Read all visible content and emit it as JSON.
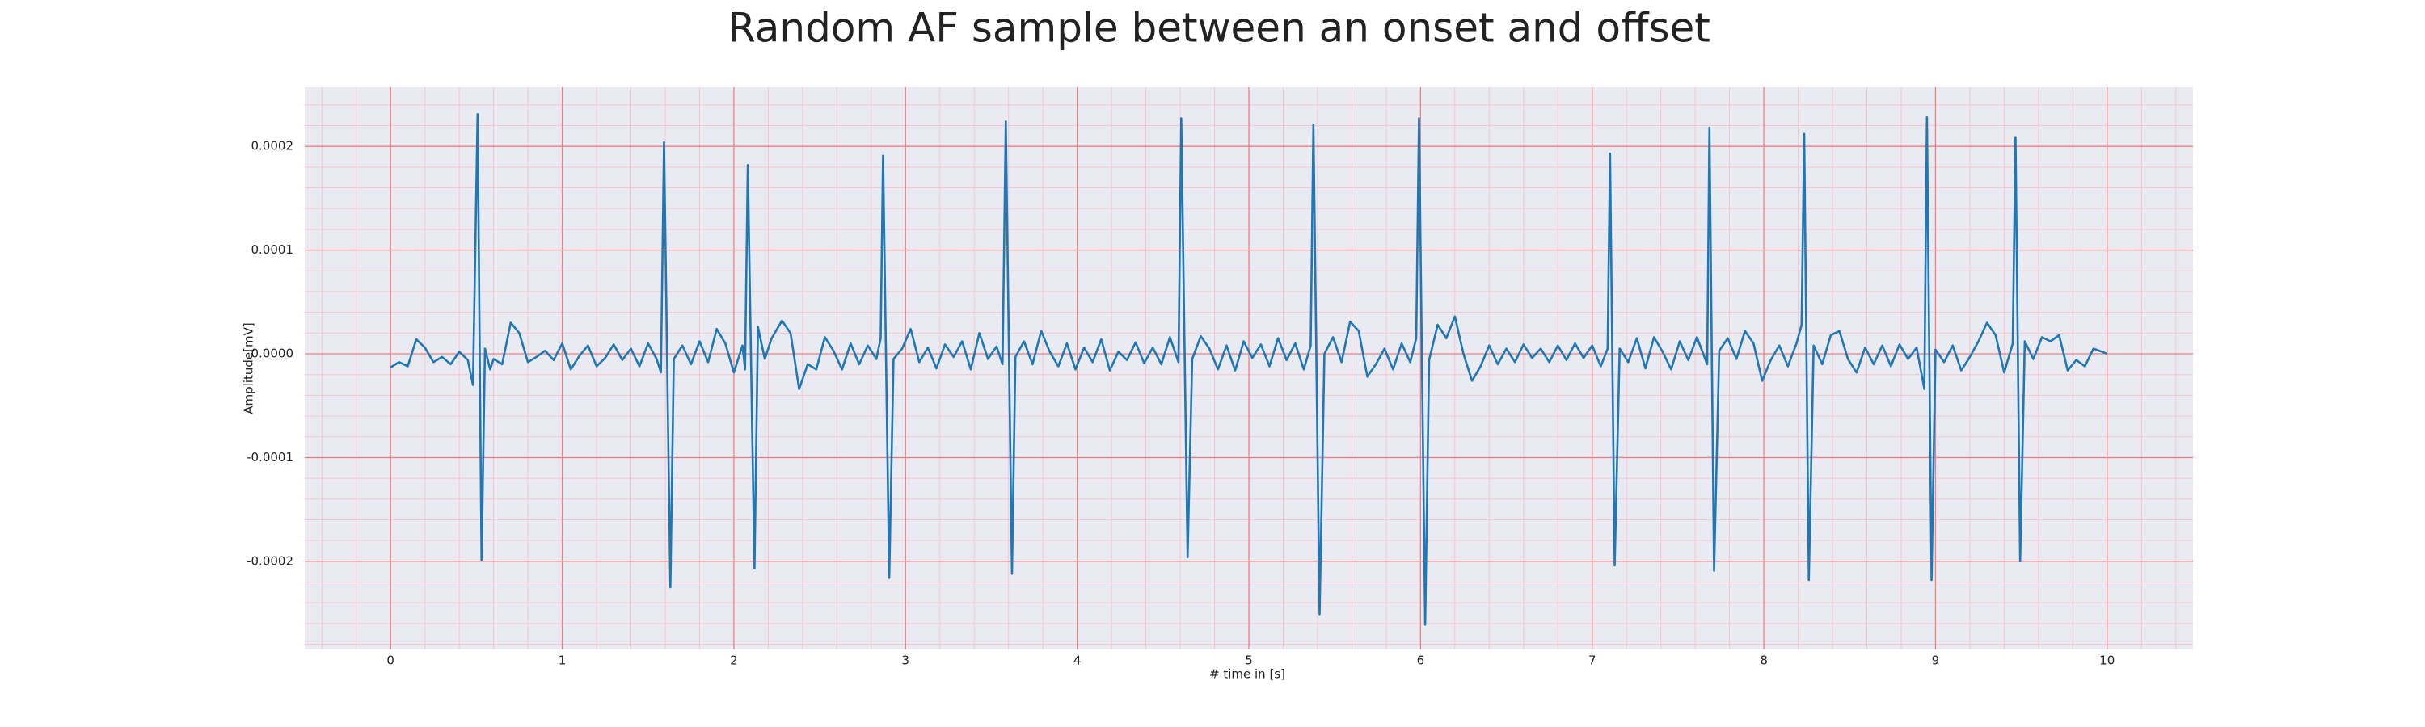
{
  "chart_data": {
    "type": "line",
    "title": "Random AF sample between an onset and offset",
    "xlabel": "# time in [s]",
    "ylabel": "Amplitude[mV]",
    "color": "#1f77b4",
    "background": "#eaeaf2",
    "grid_color": "#f08080",
    "minor_grid_color": "#f6c6cc",
    "grid": true,
    "xlim": [
      -0.5,
      10.5
    ],
    "ylim": [
      -0.000285,
      0.000257
    ],
    "xticks": [
      0,
      1,
      2,
      3,
      4,
      5,
      6,
      7,
      8,
      9,
      10
    ],
    "yticks": [
      -0.0002,
      -0.0001,
      {
        "value": 0,
        "label": "0.0000"
      },
      0.0001,
      0.0002
    ],
    "xminorticks": [
      -0.4,
      -0.2,
      0,
      0.2,
      0.4,
      0.6,
      0.8,
      1,
      1.2,
      1.4,
      1.6,
      1.8,
      2,
      2.2,
      2.4,
      2.6,
      2.8,
      3,
      3.2,
      3.4,
      3.6,
      3.8,
      4,
      4.2,
      4.4,
      4.6,
      4.8,
      5,
      5.2,
      5.4,
      5.6,
      5.8,
      6,
      6.2,
      6.4,
      6.6,
      6.8,
      7,
      7.2,
      7.4,
      7.6,
      7.8,
      8,
      8.2,
      8.4,
      8.6,
      8.8,
      9,
      9.2,
      9.4,
      9.6,
      9.8,
      10,
      10.2,
      10.4
    ],
    "yminorticks": [
      -0.00028,
      -0.00026,
      -0.00024,
      -0.00022,
      -0.0002,
      -0.00018,
      -0.00016,
      -0.00014,
      -0.00012,
      -0.0001,
      -8e-05,
      -6e-05,
      -4e-05,
      -2e-05,
      0,
      2e-05,
      4e-05,
      6e-05,
      8e-05,
      0.0001,
      0.00012,
      0.00014,
      0.00016,
      0.00018,
      0.0002,
      0.00022,
      0.00024
    ],
    "x": [
      0,
      0.05,
      0.1,
      0.15,
      0.2,
      0.25,
      0.3,
      0.35,
      0.4,
      0.45,
      0.48,
      0.507,
      0.53,
      0.55,
      0.58,
      0.6,
      0.65,
      0.7,
      0.75,
      0.8,
      0.85,
      0.9,
      0.95,
      1.0,
      1.05,
      1.1,
      1.15,
      1.2,
      1.25,
      1.3,
      1.35,
      1.4,
      1.45,
      1.5,
      1.55,
      1.575,
      1.593,
      1.63,
      1.65,
      1.7,
      1.75,
      1.8,
      1.85,
      1.9,
      1.95,
      2.0,
      2.05,
      2.065,
      2.081,
      2.12,
      2.14,
      2.18,
      2.22,
      2.28,
      2.33,
      2.38,
      2.43,
      2.48,
      2.53,
      2.58,
      2.63,
      2.68,
      2.73,
      2.78,
      2.83,
      2.855,
      2.869,
      2.905,
      2.93,
      2.98,
      3.03,
      3.08,
      3.13,
      3.18,
      3.23,
      3.28,
      3.33,
      3.38,
      3.43,
      3.48,
      3.53,
      3.565,
      3.584,
      3.62,
      3.64,
      3.69,
      3.74,
      3.79,
      3.84,
      3.89,
      3.94,
      3.99,
      4.04,
      4.09,
      4.14,
      4.19,
      4.24,
      4.29,
      4.34,
      4.39,
      4.44,
      4.49,
      4.54,
      4.59,
      4.606,
      4.643,
      4.67,
      4.72,
      4.77,
      4.82,
      4.87,
      4.92,
      4.97,
      5.02,
      5.07,
      5.12,
      5.17,
      5.22,
      5.27,
      5.32,
      5.36,
      5.376,
      5.412,
      5.44,
      5.49,
      5.54,
      5.59,
      5.64,
      5.69,
      5.74,
      5.79,
      5.84,
      5.89,
      5.94,
      5.975,
      5.991,
      6.027,
      6.05,
      6.1,
      6.15,
      6.2,
      6.25,
      6.3,
      6.35,
      6.4,
      6.45,
      6.5,
      6.55,
      6.6,
      6.65,
      6.7,
      6.75,
      6.8,
      6.85,
      6.9,
      6.95,
      7.0,
      7.05,
      7.09,
      7.104,
      7.131,
      7.16,
      7.21,
      7.26,
      7.31,
      7.36,
      7.41,
      7.46,
      7.51,
      7.56,
      7.61,
      7.67,
      7.683,
      7.71,
      7.74,
      7.79,
      7.84,
      7.89,
      7.94,
      7.99,
      8.04,
      8.09,
      8.14,
      8.19,
      8.22,
      8.235,
      8.262,
      8.29,
      8.34,
      8.39,
      8.44,
      8.49,
      8.54,
      8.59,
      8.64,
      8.69,
      8.74,
      8.79,
      8.84,
      8.89,
      8.935,
      8.95,
      8.977,
      9.0,
      9.05,
      9.1,
      9.15,
      9.2,
      9.25,
      9.3,
      9.35,
      9.4,
      9.45,
      9.466,
      9.493,
      9.52,
      9.57,
      9.62,
      9.67,
      9.72,
      9.77,
      9.82,
      9.87,
      9.92,
      9.97,
      10.0
    ],
    "values": [
      -1.3e-05,
      -8e-06,
      -1.2e-05,
      1.4e-05,
      6e-06,
      -8e-06,
      -3e-06,
      -1e-05,
      2e-06,
      -6e-06,
      -3e-05,
      0.000231,
      -0.000199,
      5e-06,
      -1.5e-05,
      -5e-06,
      -1e-05,
      3e-05,
      2e-05,
      -8e-06,
      -3e-06,
      3e-06,
      -6e-06,
      1e-05,
      -1.5e-05,
      -2e-06,
      8e-06,
      -1.2e-05,
      -4e-06,
      9e-06,
      -6e-06,
      5e-06,
      -1.2e-05,
      1e-05,
      -5e-06,
      -1.8e-05,
      0.000204,
      -0.000225,
      -5e-06,
      8e-06,
      -1e-05,
      1.2e-05,
      -8e-06,
      2.4e-05,
      1e-05,
      -1.8e-05,
      8e-06,
      -1.5e-05,
      0.000182,
      -0.000207,
      2.6e-05,
      -5e-06,
      1.5e-05,
      3.2e-05,
      2e-05,
      -3.4e-05,
      -1e-05,
      -1.5e-05,
      1.6e-05,
      3e-06,
      -1.5e-05,
      1e-05,
      -1e-05,
      8e-06,
      -5e-06,
      1.5e-05,
      0.000191,
      -0.000216,
      -5e-06,
      5e-06,
      2.4e-05,
      -8e-06,
      6e-06,
      -1.4e-05,
      9e-06,
      -3e-06,
      1.2e-05,
      -1.5e-05,
      2e-05,
      -5e-06,
      7e-06,
      -1e-05,
      0.000224,
      -0.000212,
      -3e-06,
      1.2e-05,
      -1e-05,
      2.2e-05,
      2e-06,
      -1.2e-05,
      1e-05,
      -1.5e-05,
      6e-06,
      -8e-06,
      1.4e-05,
      -1.6e-05,
      2e-06,
      -6e-06,
      1.1e-05,
      -9e-06,
      6e-06,
      -1e-05,
      1.6e-05,
      -8e-06,
      0.000227,
      -0.000196,
      -5e-06,
      1.7e-05,
      5e-06,
      -1.5e-05,
      8e-06,
      -1.6e-05,
      1.2e-05,
      -4e-06,
      9e-06,
      -1.2e-05,
      1.5e-05,
      -6e-06,
      1e-05,
      -1.5e-05,
      8e-06,
      0.000221,
      -0.000251,
      0,
      1.6e-05,
      -8e-06,
      3.1e-05,
      2.2e-05,
      -2.2e-05,
      -1e-05,
      5e-06,
      -1.5e-05,
      1e-05,
      -8e-06,
      1.5e-05,
      0.000227,
      -0.000261,
      -6e-06,
      2.8e-05,
      1.5e-05,
      3.6e-05,
      0,
      -2.6e-05,
      -1.2e-05,
      8e-06,
      -1e-05,
      5e-06,
      -8e-06,
      9e-06,
      -4e-06,
      5e-06,
      -8e-06,
      8e-06,
      -6e-06,
      1e-05,
      -4e-06,
      8e-06,
      -1.2e-05,
      5e-06,
      0.000193,
      -0.000204,
      5e-06,
      -8e-06,
      1.5e-05,
      -1.4e-05,
      1.6e-05,
      2e-06,
      -1.5e-05,
      1.2e-05,
      -6e-06,
      1.6e-05,
      -1e-05,
      0.000218,
      -0.000209,
      3e-06,
      1.5e-05,
      -5e-06,
      2.2e-05,
      1e-05,
      -2.6e-05,
      -6e-06,
      8e-06,
      -1.2e-05,
      1e-05,
      2.8e-05,
      0.000212,
      -0.000218,
      8e-06,
      -1e-05,
      1.8e-05,
      2.2e-05,
      -5e-06,
      -1.8e-05,
      6e-06,
      -1e-05,
      8e-06,
      -1.2e-05,
      9e-06,
      -5e-06,
      6e-06,
      -3.4e-05,
      0.000228,
      -0.000218,
      4e-06,
      -8e-06,
      8e-06,
      -1.6e-05,
      -3e-06,
      1.2e-05,
      3e-05,
      1.8e-05,
      -1.8e-05,
      1e-05,
      0.000209,
      -0.0002,
      1.2e-05,
      -5e-06,
      1.6e-05,
      1.2e-05,
      1.8e-05,
      -1.6e-05,
      -6e-06,
      -1.2e-05,
      5e-06,
      2e-06,
      0
    ]
  }
}
